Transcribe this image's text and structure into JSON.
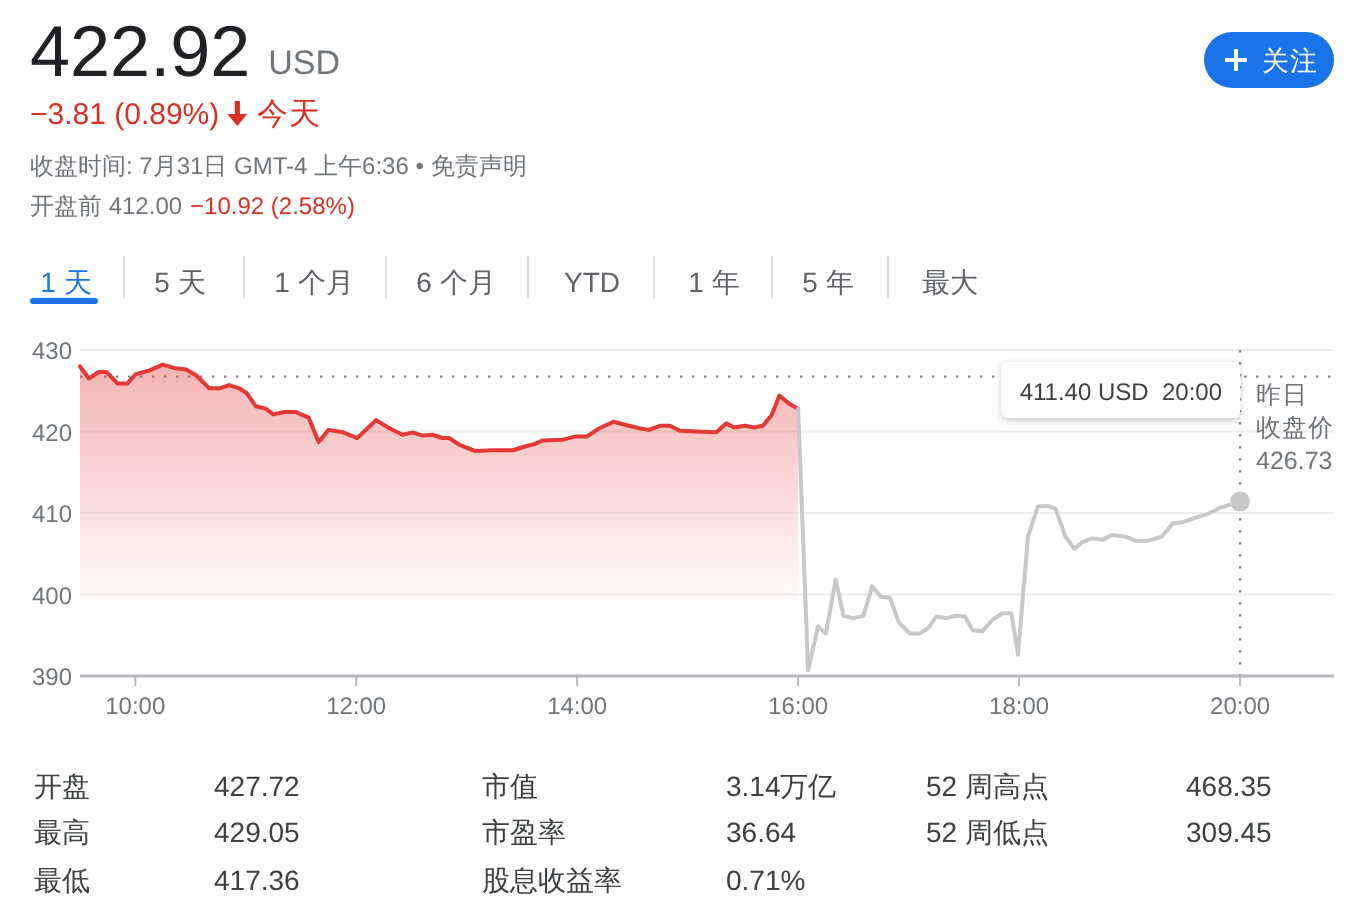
{
  "chart_data": {
    "type": "area",
    "title": "422.92",
    "annotations": [
      "USD",
      "−3.81 (0.89%)",
      "今天",
      "收盘时间: 7月31日 GMT-4 上午6:36 • 免责声明",
      "开盘前 412.00",
      "−10.92 (2.58%)",
      "关注",
      "1 天",
      "5 天",
      "1 个月",
      "6 个月",
      "YTD",
      "1 年",
      "5 年",
      "最大",
      "411.40 USD  20:00",
      "开盘",
      "427.72",
      "市值",
      "3.14万亿",
      "52 周高点",
      "468.35",
      "最高",
      "429.05",
      "市盈率",
      "36.64",
      "52 周低点",
      "309.45",
      "最低",
      "417.36",
      "股息收益率",
      "0.71%"
    ],
    "series": [
      {
        "color": "#e53935",
        "x": [
          9.5,
          9.58,
          9.67,
          9.74,
          9.84,
          9.93,
          10.0,
          10.13,
          10.25,
          10.35,
          10.46,
          10.55,
          10.67,
          10.76,
          10.85,
          10.94,
          11.01,
          11.09,
          11.18,
          11.25,
          11.35,
          11.45,
          11.57,
          11.66,
          11.75,
          11.88,
          12.01,
          12.18,
          12.3,
          12.42,
          12.51,
          12.6,
          12.69,
          12.78,
          12.84,
          12.93,
          13.08,
          13.24,
          13.42,
          13.51,
          13.6,
          13.69,
          13.87,
          13.99,
          14.09,
          14.2,
          14.33,
          14.44,
          14.56,
          14.65,
          14.75,
          14.84,
          14.93,
          15.08,
          15.26,
          15.35,
          15.42,
          15.52,
          15.6,
          15.68,
          15.76,
          15.83,
          15.92,
          16.0
        ],
        "values": [
          428.0,
          426.5,
          427.3,
          427.3,
          425.9,
          425.9,
          427.0,
          427.5,
          428.2,
          427.8,
          427.6,
          426.9,
          425.3,
          425.3,
          425.7,
          425.3,
          424.7,
          423.1,
          422.8,
          422.1,
          422.4,
          422.4,
          421.7,
          418.7,
          420.2,
          419.9,
          419.2,
          421.4,
          420.4,
          419.6,
          419.9,
          419.5,
          419.6,
          419.2,
          419.2,
          418.4,
          417.6,
          417.7,
          417.7,
          418.1,
          418.4,
          418.9,
          419.0,
          419.4,
          419.4,
          420.4,
          421.2,
          420.8,
          420.4,
          420.2,
          420.7,
          420.7,
          420.1,
          420.0,
          419.9,
          421.0,
          420.5,
          420.7,
          420.5,
          420.7,
          422.0,
          424.4,
          423.4,
          422.8
        ]
      },
      {
        "type": "line",
        "color": "#c8c8c8",
        "x": [
          16.0,
          16.09,
          16.18,
          16.25,
          16.34,
          16.41,
          16.5,
          16.59,
          16.67,
          16.75,
          16.83,
          16.91,
          17.01,
          17.1,
          17.18,
          17.25,
          17.34,
          17.43,
          17.51,
          17.58,
          17.67,
          17.76,
          17.85,
          17.93,
          17.99,
          18.08,
          18.17,
          18.26,
          18.33,
          18.42,
          18.5,
          18.57,
          18.66,
          18.75,
          18.84,
          18.96,
          19.05,
          19.17,
          19.29,
          19.39,
          19.49,
          19.59,
          19.71,
          19.83,
          20.0
        ],
        "values": [
          422.8,
          390.7,
          396.1,
          395.2,
          401.8,
          397.4,
          397.1,
          397.4,
          401.0,
          399.7,
          399.6,
          396.6,
          395.2,
          395.2,
          395.9,
          397.3,
          397.1,
          397.4,
          397.3,
          395.6,
          395.5,
          396.9,
          397.7,
          397.7,
          392.6,
          407.1,
          410.8,
          410.9,
          410.5,
          407.1,
          405.6,
          406.4,
          406.9,
          406.7,
          407.3,
          407.1,
          406.6,
          406.6,
          407.1,
          408.7,
          408.9,
          409.4,
          409.9,
          410.7,
          411.4
        ]
      },
      {
        "type": "scatter",
        "color": "#c8c8c8",
        "marker": "circle",
        "x": [
          20
        ],
        "values": [
          411.4
        ]
      }
    ],
    "xlim": [
      9.5,
      20.85
    ],
    "ylim": [
      390,
      430
    ],
    "xticks": [
      {
        "value": 10,
        "label": "10:00"
      },
      {
        "value": 12,
        "label": "12:00"
      },
      {
        "value": 14,
        "label": "14:00"
      },
      {
        "value": 16,
        "label": "16:00"
      },
      {
        "value": 18,
        "label": "18:00"
      },
      {
        "value": 20,
        "label": "20:00"
      }
    ],
    "yticks": [
      390,
      400,
      410,
      420,
      430
    ],
    "grid": "y",
    "ref_lines": [
      {
        "axis": "y",
        "value": 426.73,
        "label": "昨日收盘价 426.73",
        "color": "#80868b",
        "line_style": "dotted"
      },
      {
        "axis": "x",
        "value": 20,
        "color": "#80868b",
        "line_style": "dotted"
      }
    ]
  }
}
